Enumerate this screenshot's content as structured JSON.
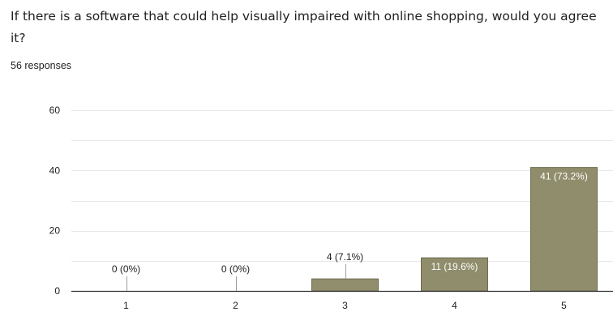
{
  "question": {
    "title": "If there is a software that could help visually impaired with online shopping, would you agree it?",
    "responses": "56 responses"
  },
  "colors": {
    "bar": "#8f8d6b",
    "bar_stroke": "#6e6c50",
    "grid": "#e8e8e8",
    "axis": "#333333",
    "label_inside": "#ffffff",
    "label_outside": "#202124"
  },
  "chart_data": {
    "type": "bar",
    "categories": [
      "1",
      "2",
      "3",
      "4",
      "5"
    ],
    "values": [
      0,
      0,
      4,
      11,
      41
    ],
    "data_labels": [
      "0 (0%)",
      "0 (0%)",
      "4 (7.1%)",
      "11 (19.6%)",
      "41 (73.2%)"
    ],
    "yticks": [
      "0",
      "20",
      "40",
      "60"
    ],
    "ylim": [
      0,
      60
    ],
    "grid": true,
    "xlabel": "",
    "ylabel": "",
    "title": ""
  }
}
